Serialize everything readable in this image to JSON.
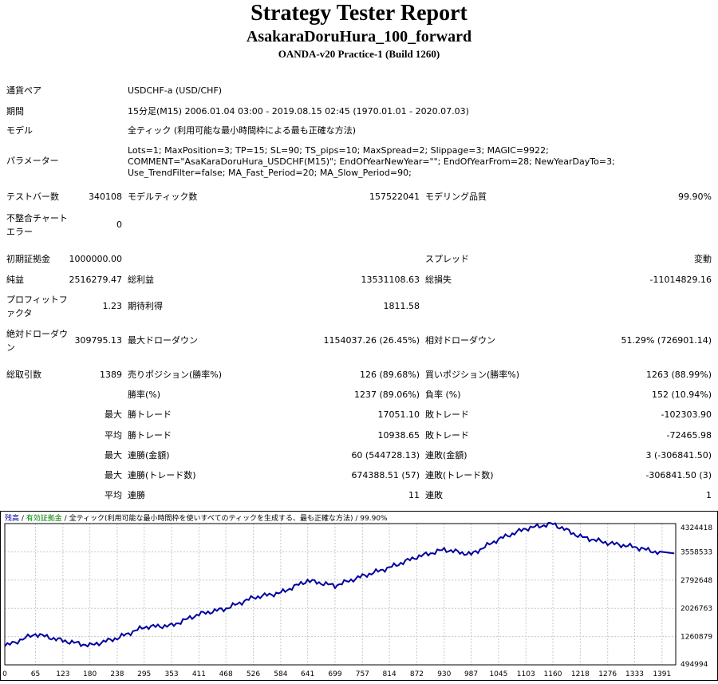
{
  "header": {
    "title": "Strategy Tester Report",
    "expert": "AsakaraDoruHura_100_forward",
    "server": "OANDA-v20 Practice-1 (Build 1260)"
  },
  "info": {
    "pair_label": "通貨ペア",
    "pair_value": "USDCHF-a (USD/CHF)",
    "period_label": "期間",
    "period_value": "15分足(M15) 2006.01.04 03:00 - 2019.08.15 02:45 (1970.01.01 - 2020.07.03)",
    "model_label": "モデル",
    "model_value": "全ティック (利用可能な最小時間枠による最も正確な方法)",
    "params_label": "パラメーター",
    "params_value": "Lots=1; MaxPosition=3; TP=15; SL=90; TS_pips=10; MaxSpread=2; Slippage=3; MAGIC=9922; COMMENT=\"AsaKaraDoruHura_USDCHF(M15)\"; EndOfYearNewYear=\"\"; EndOfYearFrom=28; NewYearDayTo=3; Use_TrendFilter=false; MA_Fast_Period=20; MA_Slow_Period=90;"
  },
  "stats": {
    "bars_label": "テストバー数",
    "bars_value": "340108",
    "ticks_label": "モデルティック数",
    "ticks_value": "157522041",
    "quality_label": "モデリング品質",
    "quality_value": "99.90%",
    "mismatch_label": "不整合チャートエラー",
    "mismatch_value": "0",
    "deposit_label": "初期証拠金",
    "deposit_value": "1000000.00",
    "spread_label": "スプレッド",
    "spread_value": "変動",
    "net_label": "純益",
    "net_value": "2516279.47",
    "gross_profit_label": "総利益",
    "gross_profit_value": "13531108.63",
    "gross_loss_label": "総損失",
    "gross_loss_value": "-11014829.16",
    "pf_label": "プロフィットファクタ",
    "pf_value": "1.23",
    "expected_label": "期待利得",
    "expected_value": "1811.58",
    "abs_dd_label": "絶対ドローダウン",
    "abs_dd_value": "309795.13",
    "max_dd_label": "最大ドローダウン",
    "max_dd_value": "1154037.26 (26.45%)",
    "rel_dd_label": "相対ドローダウン",
    "rel_dd_value": "51.29% (726901.14)",
    "total_trades_label": "総取引数",
    "total_trades_value": "1389",
    "short_label": "売りポジション(勝率%)",
    "short_value": "126 (89.68%)",
    "long_label": "買いポジション(勝率%)",
    "long_value": "1263 (88.99%)",
    "winrate_label": "勝率(%)",
    "winrate_value": "1237 (89.06%)",
    "lossrate_label": "負率 (%)",
    "lossrate_value": "152 (10.94%)",
    "max_label": "最大",
    "avg_label": "平均",
    "win_trade_label": "勝トレード",
    "loss_trade_label": "敗トレード",
    "max_win_value": "17051.10",
    "max_loss_value": "-102303.90",
    "avg_win_value": "10938.65",
    "avg_loss_value": "-72465.98",
    "cons_win_amt_label": "連勝(金額)",
    "cons_win_amt_value": "60 (544728.13)",
    "cons_loss_amt_label": "連敗(金額)",
    "cons_loss_amt_value": "3 (-306841.50)",
    "cons_win_cnt_label": "連勝(トレード数)",
    "cons_win_cnt_value": "674388.51 (57)",
    "cons_loss_cnt_label": "連敗(トレード数)",
    "cons_loss_cnt_value": "-306841.50 (3)",
    "cons_win_label": "連勝",
    "cons_win_value": "11",
    "cons_loss_label": "連敗",
    "cons_loss_value": "1"
  },
  "chart_legend": {
    "balance": "残高",
    "sep1": " / ",
    "equity": "有効証拠金",
    "sep2": " / ",
    "model": "全ティック(利用可能な最小時間枠を使いすべてのティックを生成する、最も正確な方法)",
    "quality": " / 99.90%"
  },
  "colors": {
    "balance": "#0000a0",
    "equity": "#008000",
    "grid": "#c8c8c8",
    "frame": "#000000"
  },
  "chart_data": {
    "type": "line",
    "x": [
      0,
      65,
      123,
      180,
      238,
      295,
      353,
      411,
      468,
      526,
      584,
      641,
      699,
      757,
      814,
      872,
      930,
      987,
      1045,
      1103,
      1160,
      1218,
      1276,
      1333,
      1391
    ],
    "xtick_labels": [
      "0",
      "65",
      "123",
      "180",
      "238",
      "295",
      "353",
      "411",
      "468",
      "526",
      "584",
      "641",
      "699",
      "757",
      "814",
      "872",
      "930",
      "987",
      "1045",
      "1103",
      "1160",
      "1218",
      "1276",
      "1333",
      "1391"
    ],
    "ytick_labels": [
      "4324418",
      "3558533",
      "2792648",
      "2026763",
      "1260879",
      "494994"
    ],
    "yticks": [
      4324418,
      3558533,
      2792648,
      2026763,
      1260879,
      494994
    ],
    "ylim": [
      494994,
      4324418
    ],
    "xlim": [
      0,
      1420
    ],
    "grid": true,
    "series": [
      {
        "name": "残高",
        "values": [
          1000000,
          1330000,
          1150000,
          1020000,
          1220000,
          1520000,
          1560000,
          1870000,
          2020000,
          2320000,
          2450000,
          2780000,
          2640000,
          2900000,
          3130000,
          3420000,
          3620000,
          3490000,
          3900000,
          4190000,
          4320000,
          3970000,
          3800000,
          3690000,
          3516279
        ]
      }
    ]
  }
}
